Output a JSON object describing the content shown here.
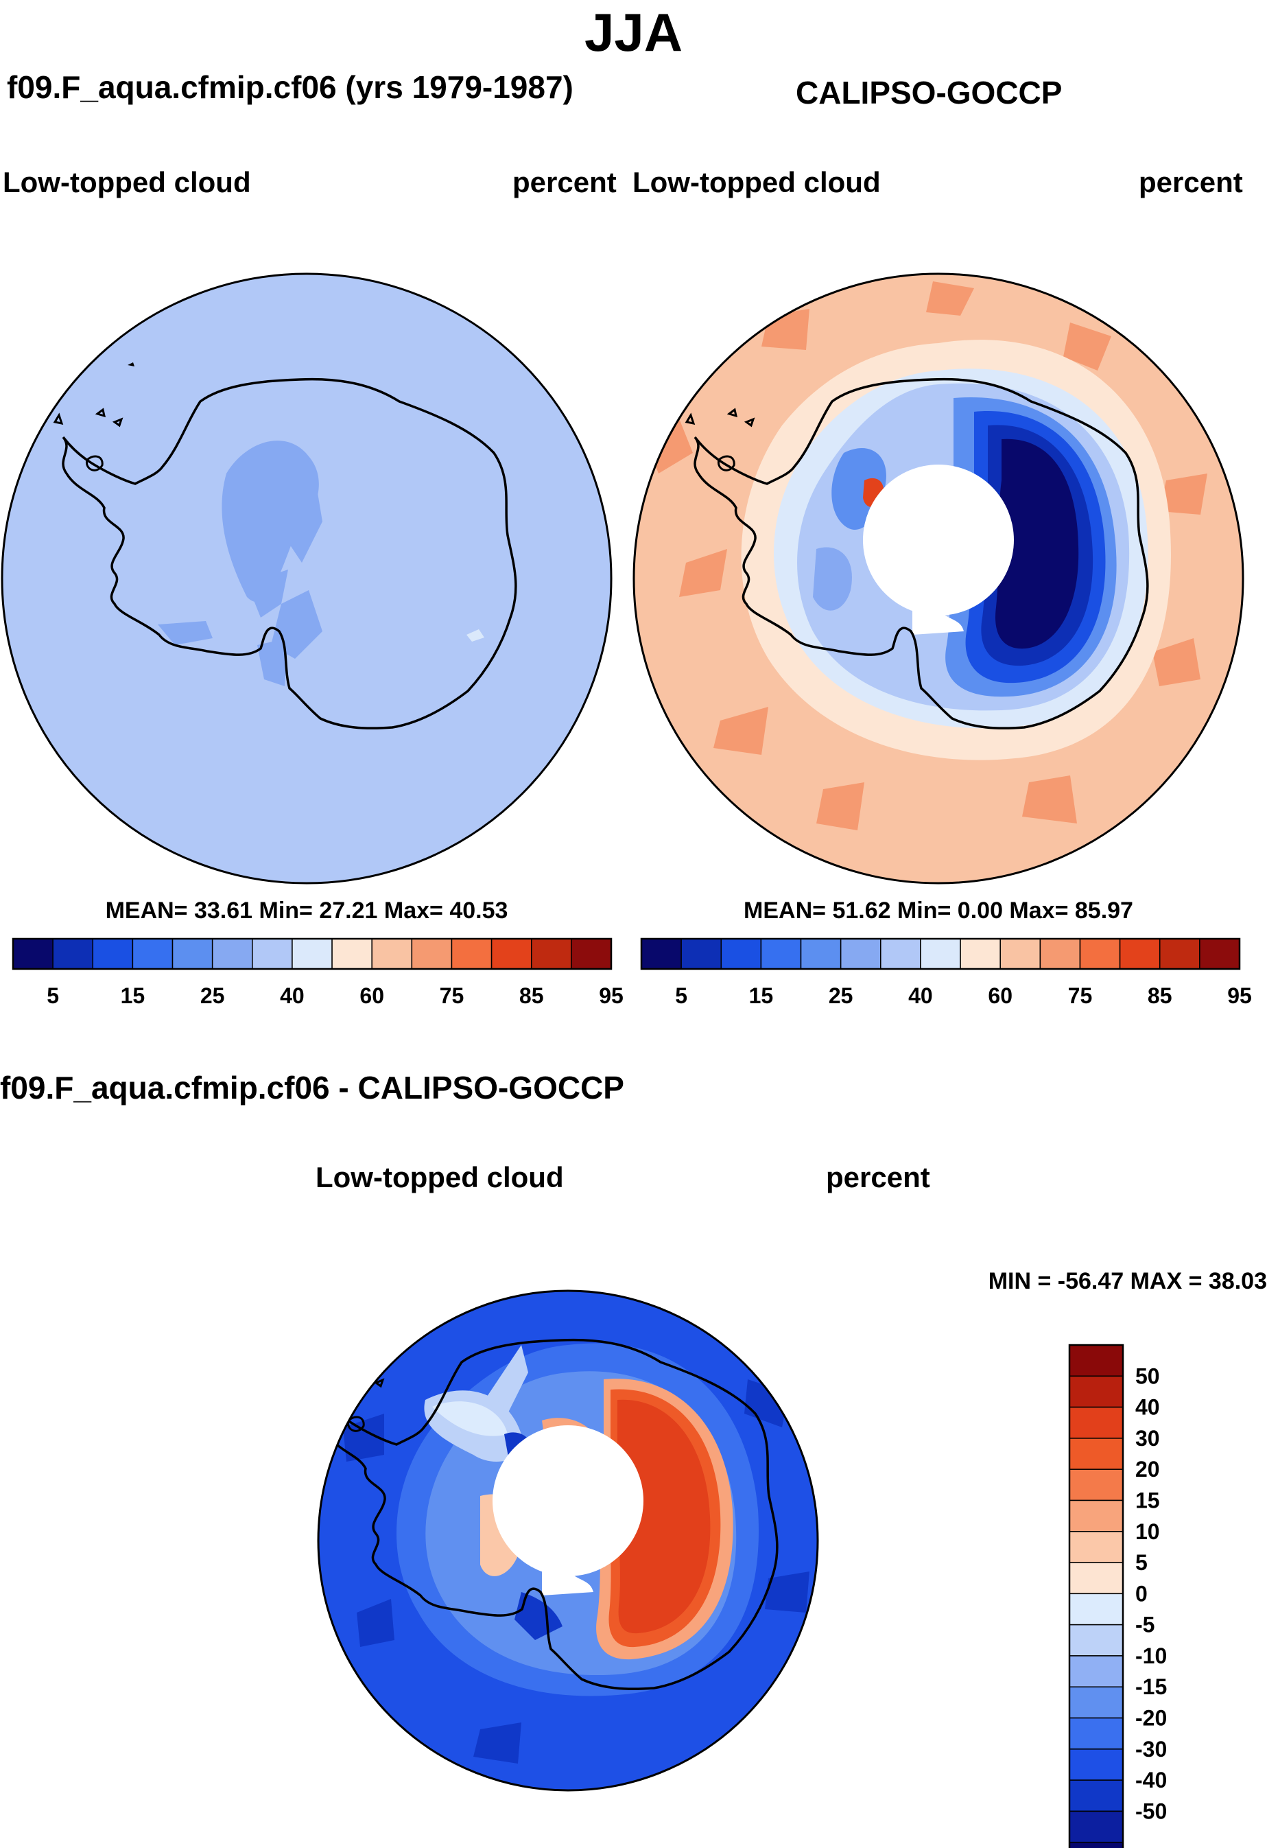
{
  "season_title": "JJA",
  "panels": {
    "left": {
      "title": "f09.F_aqua.cfmip.cf06 (yrs 1979-1987)",
      "variable": "Low-topped cloud",
      "units": "percent",
      "stats": "MEAN=  33.61  Min=  27.21  Max=  40.53"
    },
    "right": {
      "title": "CALIPSO-GOCCP",
      "variable": "Low-topped cloud",
      "units": "percent",
      "stats": "MEAN=  51.62  Min=   0.00  Max=  85.97"
    },
    "diff": {
      "title": "f09.F_aqua.cfmip.cf06 - CALIPSO-GOCCP",
      "variable": "Low-topped cloud",
      "units": "percent",
      "stats": "MIN = -56.47 MAX =  38.03"
    }
  },
  "colors": {
    "abs_scale": [
      "#08086b",
      "#0d2fb5",
      "#1a50e3",
      "#3670f0",
      "#5c8ff0",
      "#86a9f2",
      "#b1c8f7",
      "#dbe9fb",
      "#fde6d4",
      "#f9c3a3",
      "#f59a71",
      "#f36f3f",
      "#e3421b",
      "#bf2a10",
      "#8c0c0c"
    ],
    "diff_scale": [
      "#06066e",
      "#0c1fa0",
      "#1038c8",
      "#1e50e6",
      "#3a70ef",
      "#6090f0",
      "#90b0f4",
      "#bdd2f8",
      "#dcebfd",
      "#fde4d2",
      "#fbc8a9",
      "#f8a47c",
      "#f47a4a",
      "#ee5a28",
      "#e2401b",
      "#b8200e",
      "#8a0909"
    ]
  },
  "chart_data": [
    {
      "type": "heatmap",
      "projection": "south polar stereographic",
      "title": "f09.F_aqua.cfmip.cf06 (yrs 1979-1987)",
      "variable": "Low-topped cloud",
      "units": "percent",
      "mean": 33.61,
      "min": 27.21,
      "max": 40.53,
      "colorbar_levels": [
        5,
        10,
        15,
        20,
        25,
        30,
        40,
        50,
        60,
        70,
        75,
        80,
        85,
        90,
        95
      ],
      "colorbar_tick_labels": [
        "5",
        "15",
        "25",
        "40",
        "60",
        "75",
        "85",
        "95"
      ]
    },
    {
      "type": "heatmap",
      "projection": "south polar stereographic",
      "title": "CALIPSO-GOCCP",
      "variable": "Low-topped cloud",
      "units": "percent",
      "mean": 51.62,
      "min": 0.0,
      "max": 85.97,
      "colorbar_levels": [
        5,
        10,
        15,
        20,
        25,
        30,
        40,
        50,
        60,
        70,
        75,
        80,
        85,
        90,
        95
      ],
      "colorbar_tick_labels": [
        "5",
        "15",
        "25",
        "40",
        "60",
        "75",
        "85",
        "95"
      ]
    },
    {
      "type": "heatmap",
      "projection": "south polar stereographic",
      "title": "f09.F_aqua.cfmip.cf06 - CALIPSO-GOCCP",
      "variable": "Low-topped cloud",
      "units": "percent",
      "min": -56.47,
      "max": 38.03,
      "colorbar_levels": [
        -50,
        -40,
        -30,
        -20,
        -15,
        -10,
        -5,
        0,
        5,
        10,
        15,
        20,
        30,
        40,
        50
      ],
      "colorbar_tick_labels": [
        "50",
        "40",
        "30",
        "20",
        "15",
        "10",
        "5",
        "0",
        "-5",
        "-10",
        "-15",
        "-20",
        "-30",
        "-40",
        "-50"
      ]
    }
  ]
}
